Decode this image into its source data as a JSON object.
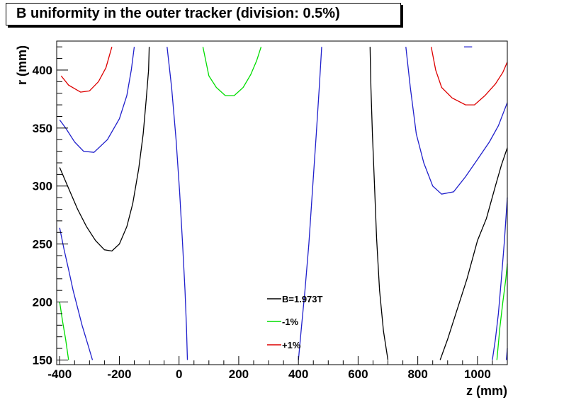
{
  "chart_data": {
    "type": "line",
    "title": "B uniformity in the outer tracker (division: 0.5%)",
    "xlabel": "z (mm)",
    "ylabel": "r (mm)",
    "xlim": [
      -410,
      1100
    ],
    "ylim": [
      146,
      425
    ],
    "xticks": [
      -400,
      -200,
      0,
      200,
      400,
      600,
      800,
      1000
    ],
    "yticks": [
      150,
      200,
      250,
      300,
      350,
      400
    ],
    "grid": false,
    "legend_position": "bottom-center",
    "legend": [
      {
        "label": "B=1.973T",
        "color": "#000000"
      },
      {
        "label": "-1%",
        "color": "#00dd00"
      },
      {
        "label": "+1%",
        "color": "#dd0000"
      }
    ],
    "series": [
      {
        "color": "#dd0000",
        "points": [
          [
            -395,
            395
          ],
          [
            -370,
            387
          ],
          [
            -330,
            381
          ],
          [
            -300,
            382
          ],
          [
            -270,
            390
          ],
          [
            -245,
            402
          ],
          [
            -225,
            420
          ]
        ]
      },
      {
        "color": "#2020cc",
        "points": [
          [
            -400,
            357
          ],
          [
            -380,
            350
          ],
          [
            -350,
            338
          ],
          [
            -320,
            330
          ],
          [
            -285,
            329
          ],
          [
            -240,
            340
          ],
          [
            -200,
            358
          ],
          [
            -175,
            378
          ],
          [
            -160,
            400
          ],
          [
            -150,
            420
          ]
        ]
      },
      {
        "color": "#000000",
        "points": [
          [
            -400,
            316
          ],
          [
            -370,
            298
          ],
          [
            -340,
            280
          ],
          [
            -310,
            265
          ],
          [
            -280,
            253
          ],
          [
            -250,
            245
          ],
          [
            -225,
            244
          ],
          [
            -200,
            250
          ],
          [
            -175,
            265
          ],
          [
            -155,
            285
          ],
          [
            -135,
            315
          ],
          [
            -120,
            345
          ],
          [
            -110,
            375
          ],
          [
            -102,
            400
          ],
          [
            -100,
            420
          ]
        ]
      },
      {
        "color": "#2020cc",
        "points": [
          [
            -400,
            264
          ],
          [
            -385,
            245
          ],
          [
            -370,
            228
          ],
          [
            -355,
            210
          ],
          [
            -340,
            195
          ],
          [
            -325,
            180
          ],
          [
            -305,
            163
          ],
          [
            -290,
            150
          ]
        ]
      },
      {
        "color": "#00dd00",
        "points": [
          [
            -400,
            200
          ],
          [
            -390,
            183
          ],
          [
            -380,
            168
          ],
          [
            -370,
            150
          ]
        ]
      },
      {
        "color": "#2020cc",
        "points": [
          [
            -40,
            420
          ],
          [
            -25,
            385
          ],
          [
            -10,
            340
          ],
          [
            2,
            295
          ],
          [
            12,
            250
          ],
          [
            20,
            210
          ],
          [
            25,
            178
          ],
          [
            28,
            150
          ]
        ]
      },
      {
        "color": "#00dd00",
        "points": [
          [
            80,
            420
          ],
          [
            100,
            395
          ],
          [
            125,
            385
          ],
          [
            155,
            378
          ],
          [
            185,
            378
          ],
          [
            215,
            385
          ],
          [
            240,
            396
          ],
          [
            260,
            408
          ],
          [
            275,
            420
          ]
        ]
      },
      {
        "color": "#2020cc",
        "points": [
          [
            400,
            150
          ],
          [
            410,
            178
          ],
          [
            422,
            210
          ],
          [
            435,
            250
          ],
          [
            448,
            300
          ],
          [
            460,
            345
          ],
          [
            470,
            385
          ],
          [
            478,
            420
          ]
        ]
      },
      {
        "color": "#000000",
        "points": [
          [
            640,
            420
          ],
          [
            643,
            385
          ],
          [
            648,
            345
          ],
          [
            655,
            300
          ],
          [
            662,
            255
          ],
          [
            672,
            210
          ],
          [
            685,
            175
          ],
          [
            700,
            150
          ]
        ]
      },
      {
        "color": "#2020cc",
        "points": [
          [
            760,
            420
          ],
          [
            775,
            385
          ],
          [
            795,
            345
          ],
          [
            820,
            320
          ],
          [
            850,
            300
          ],
          [
            880,
            293
          ],
          [
            920,
            295
          ],
          [
            960,
            308
          ],
          [
            1000,
            323
          ],
          [
            1040,
            338
          ],
          [
            1070,
            352
          ],
          [
            1100,
            372
          ]
        ]
      },
      {
        "color": "#dd0000",
        "points": [
          [
            845,
            420
          ],
          [
            860,
            400
          ],
          [
            880,
            385
          ],
          [
            915,
            376
          ],
          [
            960,
            370
          ],
          [
            990,
            370
          ],
          [
            1025,
            378
          ],
          [
            1060,
            388
          ],
          [
            1085,
            398
          ],
          [
            1100,
            407
          ]
        ]
      },
      {
        "color": "#000000",
        "points": [
          [
            875,
            150
          ],
          [
            900,
            168
          ],
          [
            930,
            192
          ],
          [
            965,
            220
          ],
          [
            1000,
            253
          ],
          [
            1030,
            272
          ],
          [
            1060,
            300
          ],
          [
            1080,
            318
          ],
          [
            1100,
            333
          ]
        ]
      },
      {
        "color": "#2020cc",
        "points": [
          [
            1050,
            150
          ],
          [
            1060,
            168
          ],
          [
            1070,
            190
          ],
          [
            1080,
            220
          ],
          [
            1090,
            252
          ],
          [
            1100,
            290
          ]
        ]
      },
      {
        "color": "#00dd00",
        "points": [
          [
            1065,
            150
          ],
          [
            1075,
            178
          ],
          [
            1085,
            200
          ],
          [
            1095,
            220
          ],
          [
            1100,
            233
          ]
        ]
      },
      {
        "color": "#2020cc",
        "points": [
          [
            1097,
            150
          ],
          [
            1100,
            160
          ]
        ]
      },
      {
        "color": "#2020cc",
        "points": [
          [
            955,
            420
          ],
          [
            982,
            420
          ]
        ]
      }
    ]
  }
}
